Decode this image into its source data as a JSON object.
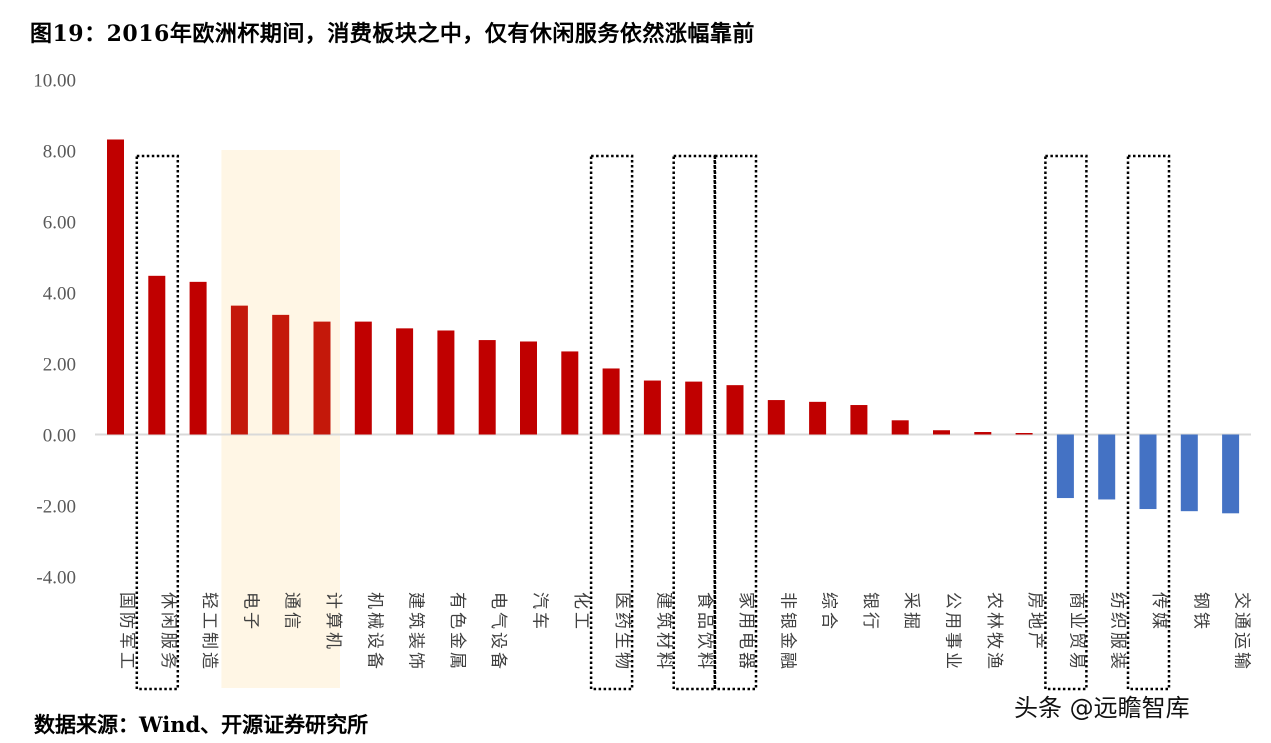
{
  "figure": {
    "title": "图19：2016年欧洲杯期间，消费板块之中，仅有休闲服务依然涨幅靠前",
    "source": "数据来源：Wind、开源证券研究所",
    "watermark": "头条 @远瞻智库"
  },
  "colors": {
    "positive_bar": "#C00000",
    "positive_bar_highlight": "#C4180A",
    "negative_bar": "#4472C4",
    "highlight_band": "#FFF6E5",
    "axis_line": "#D9D9D9",
    "tick_text": "#595959",
    "dotted_box": "#000000"
  },
  "chart_data": {
    "type": "bar",
    "title": "2016年欧洲杯期间，消费板块之中，仅有休闲服务依然涨幅靠前",
    "xlabel": "",
    "ylabel": "",
    "ylim": [
      -4,
      10
    ],
    "yticks": [
      "10.00",
      "8.00",
      "6.00",
      "4.00",
      "2.00",
      "0.00",
      "-2.00",
      "-4.00"
    ],
    "grid": false,
    "legend": null,
    "categories": [
      "国防军工",
      "休闲服务",
      "轻工制造",
      "电子",
      "通信",
      "计算机",
      "机械设备",
      "建筑装饰",
      "有色金属",
      "电气设备",
      "汽车",
      "化工",
      "医药生物",
      "建筑材料",
      "食品饮料",
      "家用电器",
      "非银金融",
      "综合",
      "银行",
      "采掘",
      "公用事业",
      "农林牧渔",
      "房地产",
      "商业贸易",
      "纺织服装",
      "传媒",
      "钢铁",
      "交通运输"
    ],
    "values": [
      8.31,
      4.47,
      4.3,
      3.63,
      3.37,
      3.18,
      3.18,
      2.99,
      2.93,
      2.66,
      2.62,
      2.34,
      1.86,
      1.52,
      1.49,
      1.39,
      0.97,
      0.92,
      0.83,
      0.4,
      0.12,
      0.07,
      0.04,
      -1.79,
      -1.83,
      -2.1,
      -2.16,
      -2.22
    ],
    "annotations": {
      "dotted_boxes": [
        "休闲服务",
        "医药生物",
        "食品饮料",
        "家用电器",
        "商业贸易",
        "传媒"
      ],
      "highlight_band": [
        "电子",
        "通信",
        "计算机"
      ]
    }
  }
}
